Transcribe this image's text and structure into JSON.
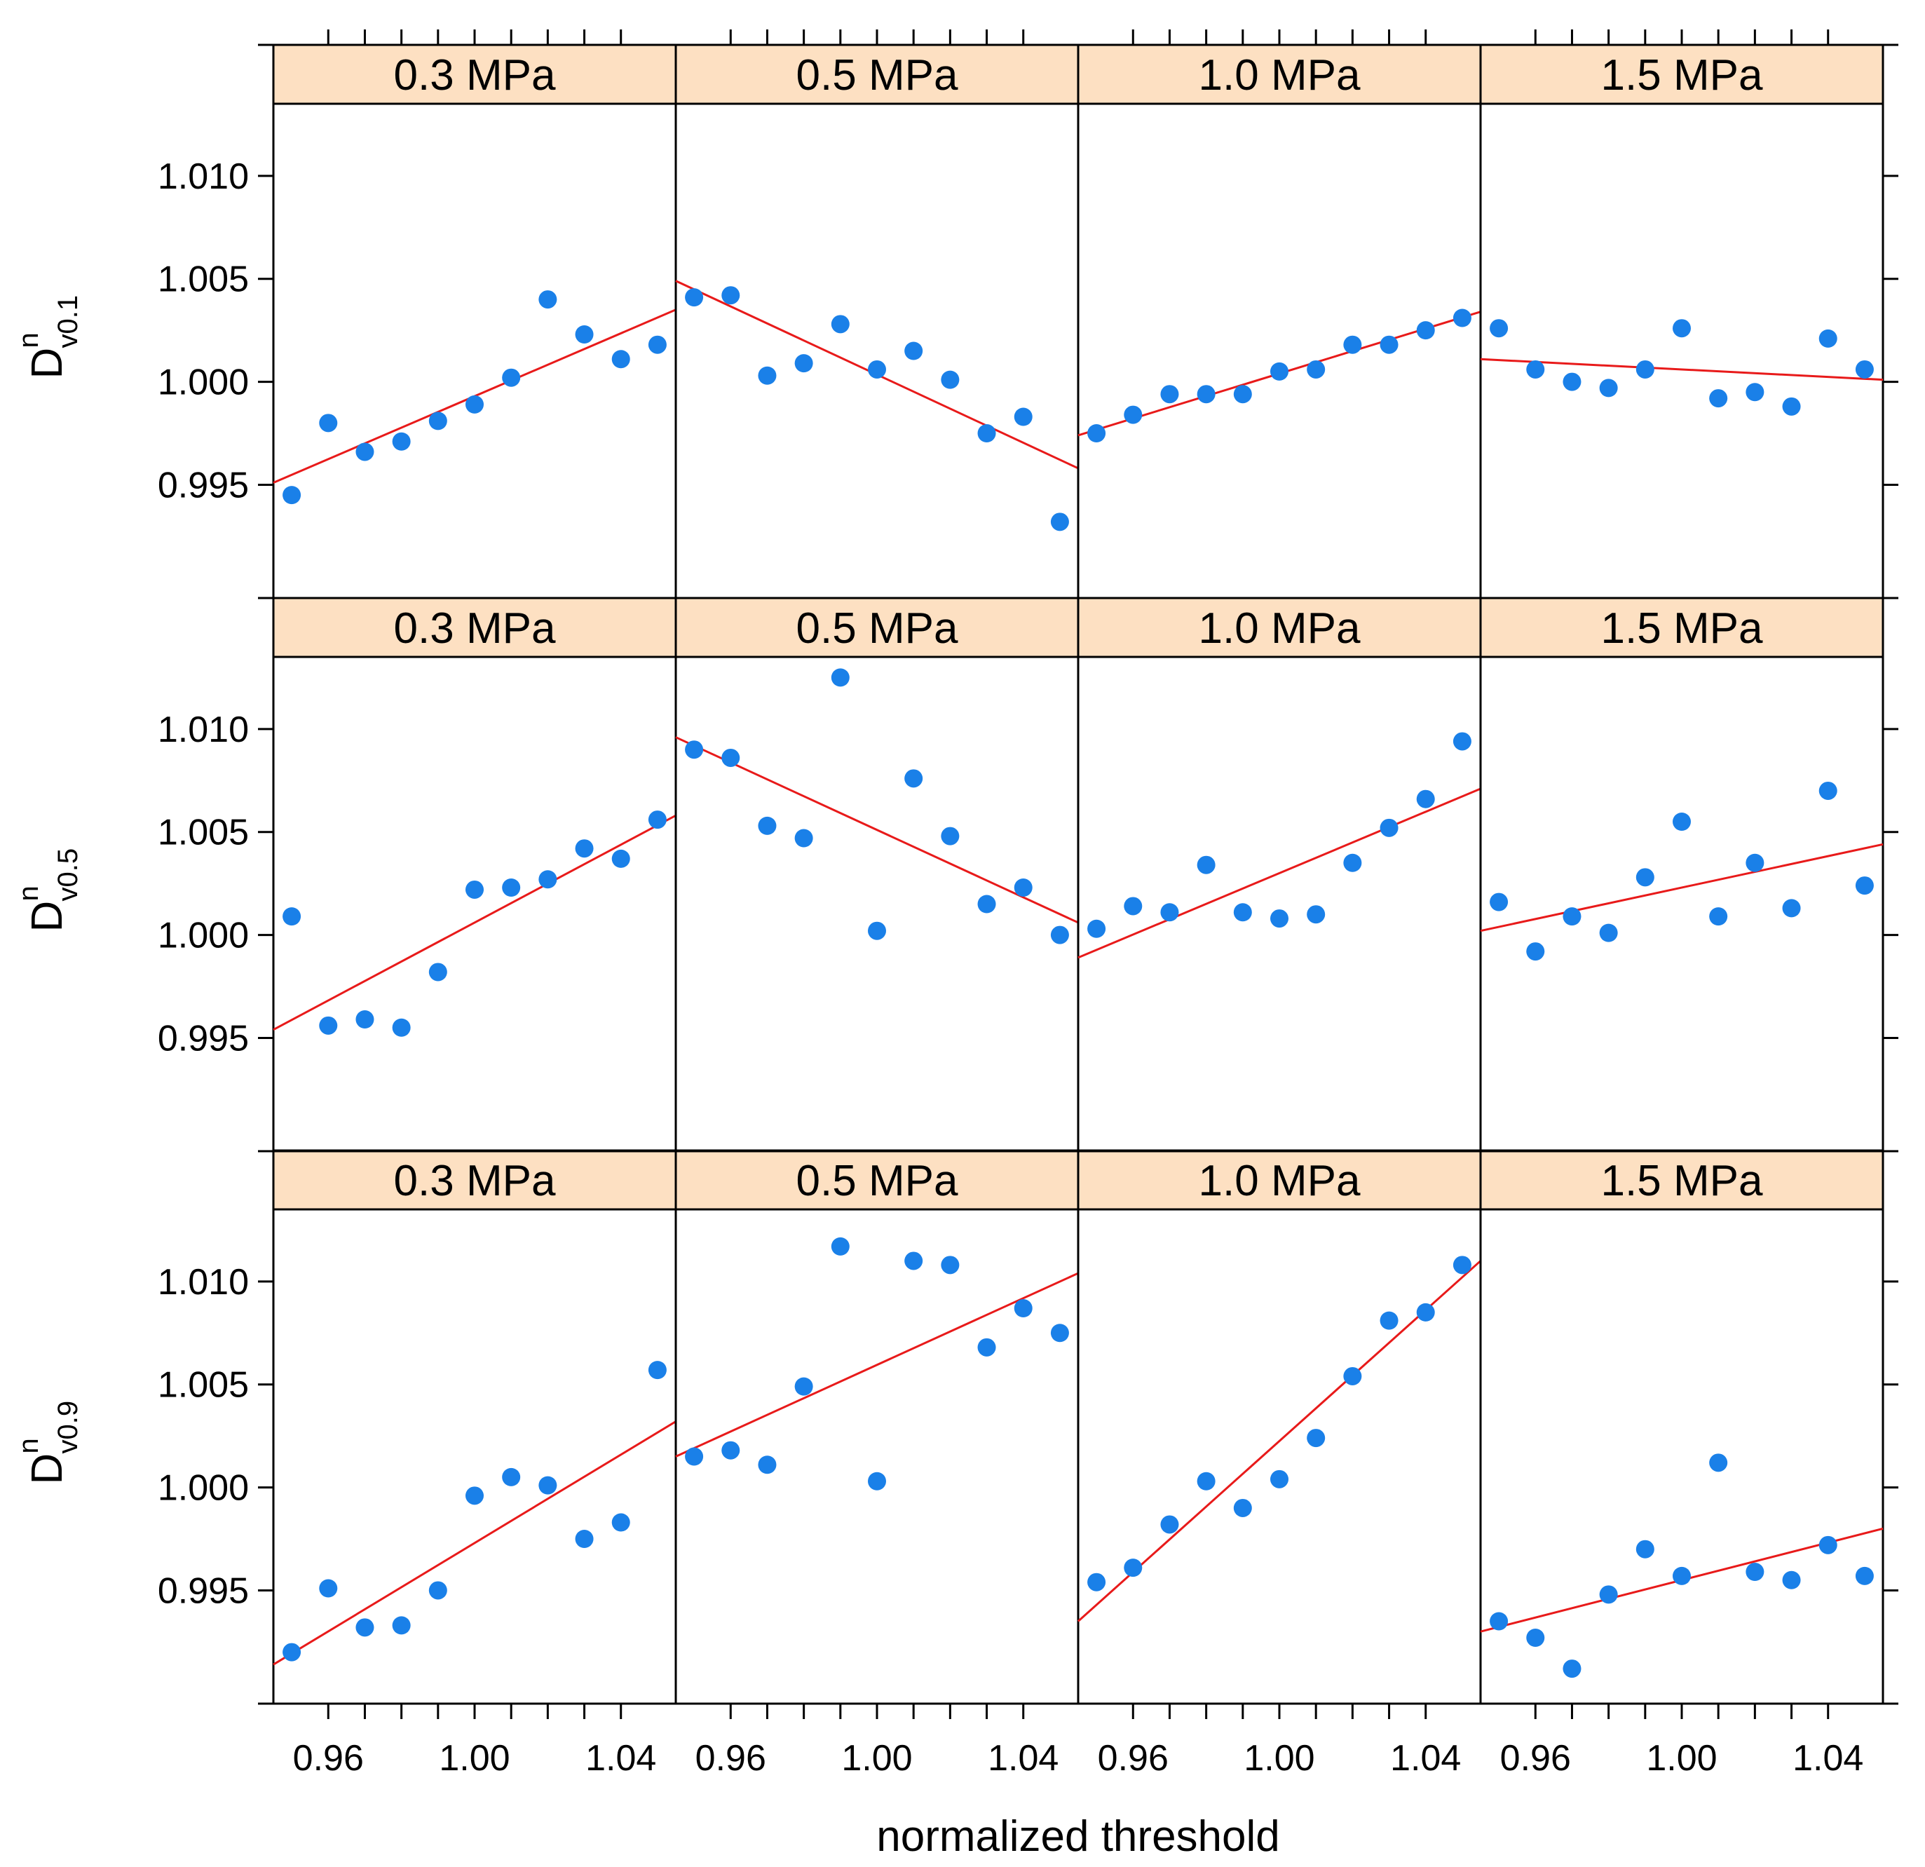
{
  "colors": {
    "point": "#1a80e8",
    "fit_line": "#e81a1a",
    "strip_fill": "#fde0c2",
    "frame": "#000000"
  },
  "chart_data": {
    "type": "scatter",
    "layout": "trellis",
    "columns": [
      "0.3 MPa",
      "0.5 MPa",
      "1.0 MPa",
      "1.5 MPa"
    ],
    "xlabel": "normalized threshold",
    "xlim": [
      0.945,
      1.055
    ],
    "x_ticks": [
      "0.96",
      "1.00",
      "1.04"
    ],
    "x": [
      0.95,
      0.96,
      0.97,
      0.98,
      0.99,
      1.0,
      1.01,
      1.02,
      1.03,
      1.04,
      1.05
    ],
    "ylim": [
      0.9895,
      1.0135
    ],
    "y_ticks": [
      "0.995",
      "1.000",
      "1.005",
      "1.010"
    ],
    "rows": [
      {
        "ylabel": {
          "base": "D",
          "sup": "n",
          "sub": "v0.1"
        },
        "panels": [
          {
            "strip": "0.3 MPa",
            "y": [
              0.9945,
              0.998,
              0.9966,
              0.9971,
              0.9981,
              0.9989,
              1.0002,
              1.004,
              1.0023,
              1.0011,
              1.0018
            ],
            "fit": [
              0.9951,
              1.0035
            ]
          },
          {
            "strip": "0.5 MPa",
            "y": [
              1.0041,
              1.0042,
              1.0003,
              1.0009,
              1.0028,
              1.0006,
              1.0015,
              1.0001,
              0.9975,
              0.9983,
              0.9932
            ],
            "fit": [
              1.0049,
              0.9958
            ]
          },
          {
            "strip": "1.0 MPa",
            "y": [
              0.9975,
              0.9984,
              0.9994,
              0.9994,
              0.9994,
              1.0005,
              1.0006,
              1.0018,
              1.0018,
              1.0025,
              1.0031
            ],
            "fit": [
              0.9974,
              1.0034
            ]
          },
          {
            "strip": "1.5 MPa",
            "y": [
              1.0026,
              1.0006,
              1.0,
              0.9997,
              1.0006,
              1.0026,
              0.9992,
              0.9995,
              0.9988,
              1.0021,
              1.0006
            ],
            "fit": [
              1.0011,
              1.0001
            ]
          }
        ]
      },
      {
        "ylabel": {
          "base": "D",
          "sup": "n",
          "sub": "v0.5"
        },
        "panels": [
          {
            "strip": "0.3 MPa",
            "y": [
              1.0009,
              0.9956,
              0.9959,
              0.9955,
              0.9982,
              1.0022,
              1.0023,
              1.0027,
              1.0042,
              1.0037,
              1.0056
            ],
            "fit": [
              0.9954,
              1.0058
            ]
          },
          {
            "strip": "0.5 MPa",
            "y": [
              1.009,
              1.0086,
              1.0053,
              1.0047,
              1.0125,
              1.0002,
              1.0076,
              1.0048,
              1.0015,
              1.0023,
              1.0
            ],
            "fit": [
              1.0096,
              1.0006
            ]
          },
          {
            "strip": "1.0 MPa",
            "y": [
              1.0003,
              1.0014,
              1.0011,
              1.0034,
              1.0011,
              1.0008,
              1.001,
              1.0035,
              1.0052,
              1.0066,
              1.0094
            ],
            "fit": [
              0.9989,
              1.0071
            ]
          },
          {
            "strip": "1.5 MPa",
            "y": [
              1.0016,
              0.9992,
              1.0009,
              1.0001,
              1.0028,
              1.0055,
              1.0009,
              1.0035,
              1.0013,
              1.007,
              1.0024
            ],
            "fit": [
              1.0002,
              1.0044
            ]
          }
        ]
      },
      {
        "ylabel": {
          "base": "D",
          "sup": "n",
          "sub": "v0.9"
        },
        "panels": [
          {
            "strip": "0.3 MPa",
            "y": [
              0.992,
              0.9951,
              0.9932,
              0.9933,
              0.995,
              0.9996,
              1.0005,
              1.0001,
              0.9975,
              0.9983,
              1.0057
            ],
            "fit": [
              0.9914,
              1.0032
            ]
          },
          {
            "strip": "0.5 MPa",
            "y": [
              1.0015,
              1.0018,
              1.0011,
              1.0049,
              1.0117,
              1.0003,
              1.011,
              1.0108,
              1.0068,
              1.0087,
              1.0075
            ],
            "fit": [
              1.0015,
              1.0104
            ]
          },
          {
            "strip": "1.0 MPa",
            "y": [
              0.9954,
              0.9961,
              0.9982,
              1.0003,
              0.999,
              1.0004,
              1.0024,
              1.0054,
              1.0081,
              1.0085,
              1.0108
            ],
            "fit": [
              0.9935,
              1.011
            ]
          },
          {
            "strip": "1.5 MPa",
            "y": [
              0.9935,
              0.9927,
              0.9912,
              0.9948,
              0.997,
              0.9957,
              1.0012,
              0.9959,
              0.9955,
              0.9972,
              0.9957
            ],
            "fit": [
              0.993,
              0.998
            ]
          }
        ]
      }
    ]
  }
}
